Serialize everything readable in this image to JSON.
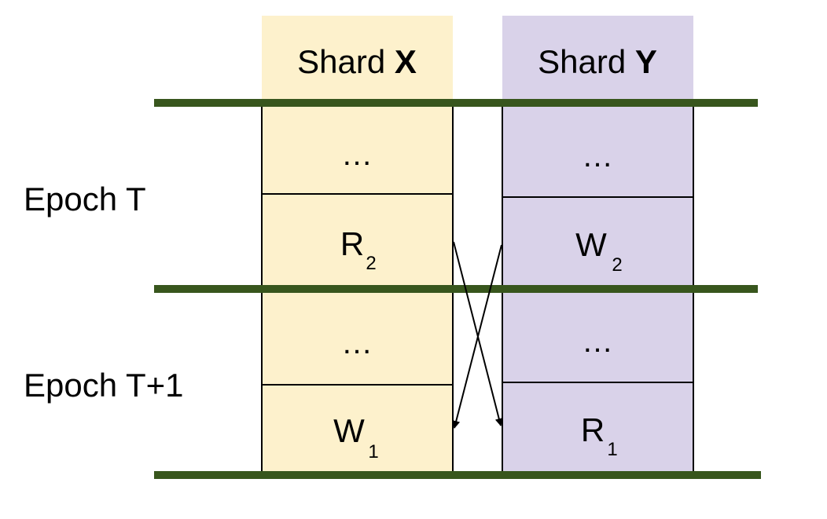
{
  "colors": {
    "shard_x_fill": "#fdf1cc",
    "shard_y_fill": "#d9d2e9",
    "epoch_line": "#38561d",
    "border": "#000000"
  },
  "shards": [
    {
      "id": "X",
      "label_prefix": "Shard ",
      "label_bold": "X"
    },
    {
      "id": "Y",
      "label_prefix": "Shard ",
      "label_bold": "Y"
    }
  ],
  "epochs": [
    {
      "label": "Epoch T"
    },
    {
      "label": "Epoch T+1"
    }
  ],
  "cells": {
    "x_t_top": {
      "main": "…",
      "sub": ""
    },
    "x_t_bottom": {
      "main": "R",
      "sub": "2"
    },
    "x_t1_top": {
      "main": "…",
      "sub": ""
    },
    "x_t1_bottom": {
      "main": "W",
      "sub": "1"
    },
    "y_t_top": {
      "main": "…",
      "sub": ""
    },
    "y_t_bottom": {
      "main": "W",
      "sub": "2"
    },
    "y_t1_top": {
      "main": "…",
      "sub": ""
    },
    "y_t1_bottom": {
      "main": "R",
      "sub": "1"
    }
  },
  "arrows": [
    {
      "name": "arrow-r2-to-r1",
      "from": "x_t_bottom",
      "to": "y_t1_bottom"
    },
    {
      "name": "arrow-w2-to-w1",
      "from": "y_t_bottom",
      "to": "x_t1_bottom"
    }
  ]
}
